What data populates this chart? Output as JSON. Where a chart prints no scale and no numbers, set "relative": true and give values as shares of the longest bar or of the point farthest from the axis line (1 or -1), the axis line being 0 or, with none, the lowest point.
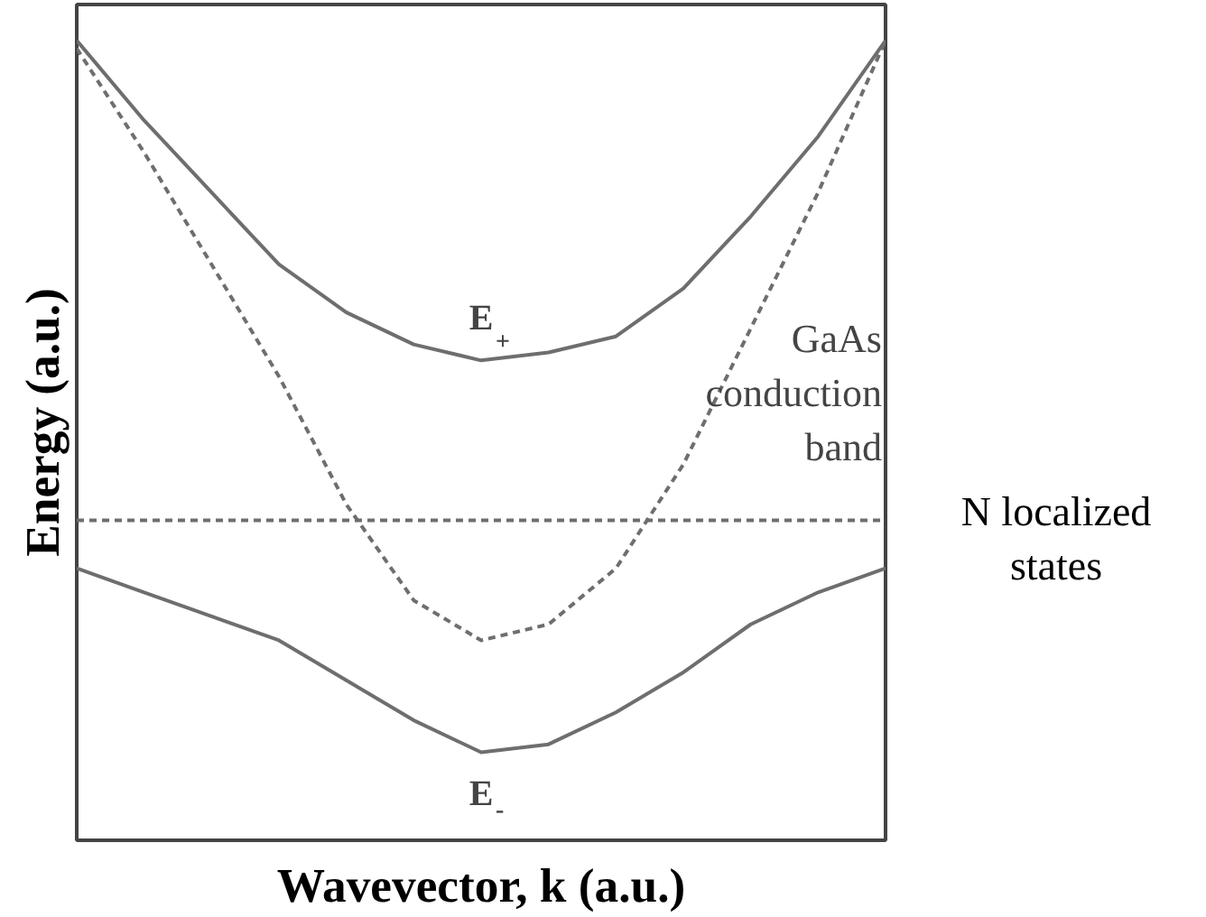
{
  "chart_data": {
    "type": "line",
    "relative": true,
    "xlabel": "Wavevector, k (a.u.)",
    "ylabel": "Energy (a.u.)",
    "categories": [
      null,
      null,
      null,
      null,
      null,
      null,
      null,
      null,
      null,
      null,
      null,
      null,
      null
    ],
    "series": [
      {
        "name": "E$_{+}$",
        "color": "#6e6e6e",
        "line_style": "solid",
        "values": [
          1.0,
          0.9,
          0.81,
          0.72,
          0.66,
          0.62,
          0.6,
          0.61,
          0.63,
          0.69,
          0.78,
          0.88,
          1.0
        ]
      },
      {
        "name": "GaAs\nconduction\nband",
        "color": "#6e6e6e",
        "line_style": "dashed",
        "values": [
          0.99,
          0.86,
          0.72,
          0.58,
          0.42,
          0.3,
          0.25,
          0.27,
          0.34,
          0.47,
          0.64,
          0.81,
          1.0
        ]
      },
      {
        "name": "N localized\nstates",
        "color": "#6e6e6e",
        "line_style": "dashed",
        "values": [
          0.4,
          0.4,
          0.4,
          0.4,
          0.4,
          0.4,
          0.4,
          0.4,
          0.4,
          0.4,
          0.4,
          0.4,
          0.4
        ]
      },
      {
        "name": "E$_{-}$",
        "color": "#6e6e6e",
        "line_style": "solid",
        "values": [
          0.34,
          0.31,
          0.28,
          0.25,
          0.2,
          0.15,
          0.11,
          0.12,
          0.16,
          0.21,
          0.27,
          0.31,
          0.34
        ]
      }
    ]
  }
}
